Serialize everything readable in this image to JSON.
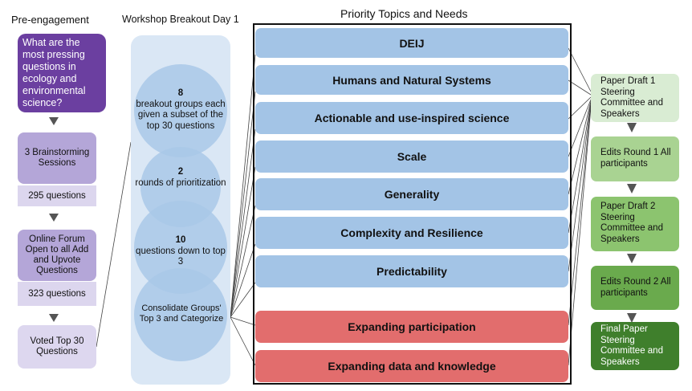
{
  "headers": {
    "pre_engagement": "Pre-engagement",
    "workshop": "Workshop Breakout Day 1",
    "priority": "Priority Topics and Needs"
  },
  "pre_engagement": {
    "question": "What are the most pressing questions in ecology and environmental science?",
    "brainstorm": "3 Brainstorming Sessions",
    "count1": "295 questions",
    "forum": "Online Forum Open to all Add and Upvote Questions",
    "count2": "323 questions",
    "voted": "Voted Top 30 Questions"
  },
  "workshop_steps": [
    {
      "num": "8",
      "text": "breakout groups each given a subset of the top 30 questions"
    },
    {
      "num": "2",
      "text": "rounds of prioritization"
    },
    {
      "num": "10",
      "text": "questions down to top 3"
    },
    {
      "num": "",
      "text": "Consolidate Groups' Top 3 and Categorize"
    }
  ],
  "topics": [
    {
      "label": "DEIJ",
      "kind": "blue"
    },
    {
      "label": "Humans and Natural Systems",
      "kind": "blue"
    },
    {
      "label": "Actionable and use-inspired science",
      "kind": "blue"
    },
    {
      "label": "Scale",
      "kind": "blue"
    },
    {
      "label": "Generality",
      "kind": "blue"
    },
    {
      "label": "Complexity and Resilience",
      "kind": "blue"
    },
    {
      "label": "Predictability",
      "kind": "blue"
    },
    {
      "label": "Expanding participation",
      "kind": "red"
    },
    {
      "label": "Expanding data and knowledge",
      "kind": "red"
    }
  ],
  "outputs": [
    {
      "text": "Paper Draft 1 Steering Committee and Speakers",
      "color": "#d9ecd3"
    },
    {
      "text": "Edits Round 1 All participants",
      "color": "#a9d392"
    },
    {
      "text": "Paper Draft 2 Steering Committee and Speakers",
      "color": "#8cc46f"
    },
    {
      "text": "Edits Round 2 All participants",
      "color": "#6aaa4d"
    },
    {
      "text": "Final Paper Steering Committee and Speakers",
      "color": "#3f7f2c"
    }
  ]
}
